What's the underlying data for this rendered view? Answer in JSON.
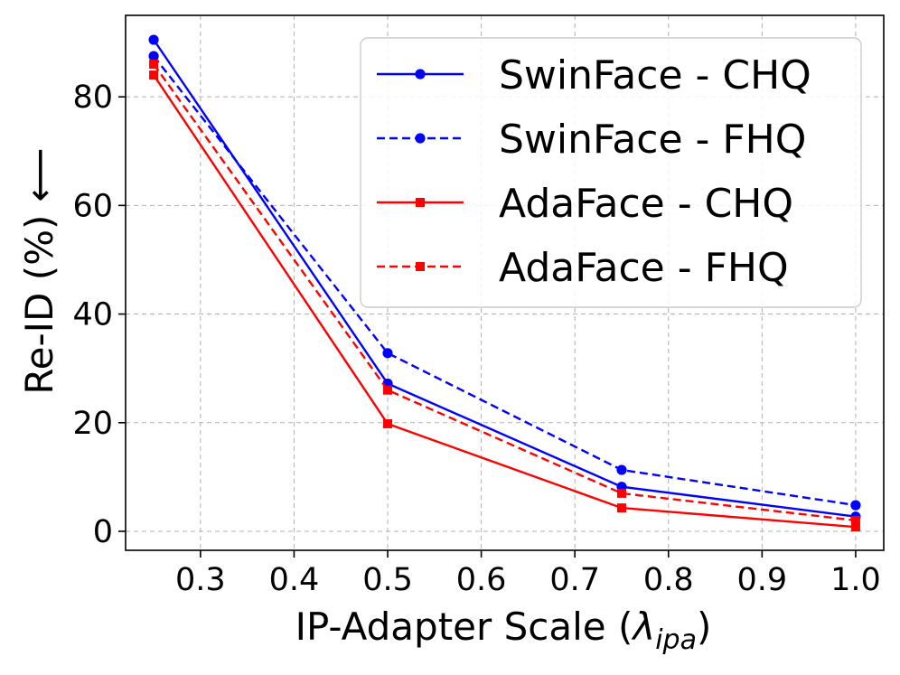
{
  "chart_data": {
    "type": "line",
    "title": "",
    "xlabel_main": "IP-Adapter Scale (",
    "xlabel_symbol": "λ",
    "xlabel_sub": "ipa",
    "xlabel_close": ")",
    "ylabel": "Re-ID (%)",
    "ylabel_arrow": "⟵",
    "xlim": [
      0.22,
      1.03
    ],
    "ylim": [
      -3.5,
      95
    ],
    "xticks": [
      0.3,
      0.4,
      0.5,
      0.6,
      0.7,
      0.8,
      0.9,
      1.0
    ],
    "xtick_labels": [
      "0.3",
      "0.4",
      "0.5",
      "0.6",
      "0.7",
      "0.8",
      "0.9",
      "1.0"
    ],
    "yticks": [
      0,
      20,
      40,
      60,
      80
    ],
    "ytick_labels": [
      "0",
      "20",
      "40",
      "60",
      "80"
    ],
    "grid": true,
    "legend_position": "top-right",
    "series": [
      {
        "name": "SwinFace - CHQ",
        "color": "#0000ff",
        "style": "solid",
        "marker": "circle",
        "x": [
          0.25,
          0.5,
          0.75,
          1.0
        ],
        "values": [
          90.5,
          27.2,
          8.2,
          2.7
        ]
      },
      {
        "name": "SwinFace - FHQ",
        "color": "#0000ff",
        "style": "dashed",
        "marker": "circle",
        "x": [
          0.25,
          0.5,
          0.75,
          1.0
        ],
        "values": [
          87.5,
          32.8,
          11.3,
          4.8
        ]
      },
      {
        "name": "AdaFace - CHQ",
        "color": "#ff0000",
        "style": "solid",
        "marker": "square",
        "x": [
          0.25,
          0.5,
          0.75,
          1.0
        ],
        "values": [
          84.0,
          19.8,
          4.3,
          0.8
        ]
      },
      {
        "name": "AdaFace - FHQ",
        "color": "#ff0000",
        "style": "dashed",
        "marker": "square",
        "x": [
          0.25,
          0.5,
          0.75,
          1.0
        ],
        "values": [
          86.0,
          26.0,
          7.0,
          2.0
        ]
      }
    ]
  }
}
